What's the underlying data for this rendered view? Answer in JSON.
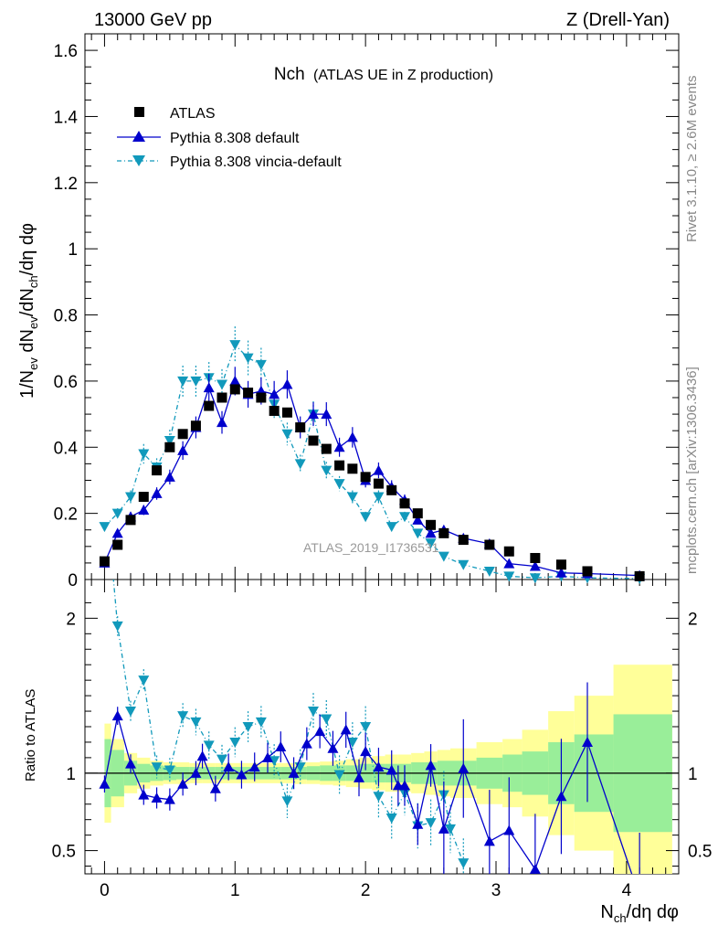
{
  "header": {
    "left": "13000 GeV pp",
    "right": "Z (Drell-Yan)"
  },
  "title_main": "Nch",
  "title_sub": "(ATLAS UE in Z production)",
  "side_text": {
    "rivet": "Rivet 3.1.10, ≥ 2.6M events",
    "mcplots": "mcplots.cern.ch [arXiv:1306.3436]"
  },
  "watermark": "ATLAS_2019_I1736531",
  "axes": {
    "xlabel": "N_ch/dη dφ",
    "ylabel_top": "1/N_ev dN_ev/dN_ch/dη dφ",
    "ylabel_bottom": "Ratio to ATLAS",
    "xlim": [
      -0.15,
      4.4
    ],
    "ylim_top": [
      0,
      1.65
    ],
    "ylim_bottom": [
      0.35,
      2.25
    ],
    "xticks": [
      "0",
      "1",
      "2",
      "3",
      "4"
    ],
    "yticks_top": [
      "0",
      "0.2",
      "0.4",
      "0.6",
      "0.8",
      "1",
      "1.2",
      "1.4",
      "1.6"
    ],
    "yticks_bottom": [
      "0.5",
      "1",
      "2"
    ]
  },
  "legend": [
    {
      "label": "ATLAS",
      "color": "#000000",
      "marker": "square"
    },
    {
      "label": "Pythia 8.308 default",
      "color": "#0000cc",
      "marker": "triangle-up"
    },
    {
      "label": "Pythia 8.308 vincia-default",
      "color": "#1199bb",
      "marker": "triangle-down"
    }
  ],
  "chart_data": {
    "type": "scatter",
    "x": [
      0.0,
      0.1,
      0.2,
      0.3,
      0.4,
      0.5,
      0.6,
      0.7,
      0.8,
      0.9,
      1.0,
      1.1,
      1.2,
      1.3,
      1.4,
      1.5,
      1.6,
      1.7,
      1.8,
      1.9,
      2.0,
      2.1,
      2.2,
      2.3,
      2.4,
      2.5,
      2.6,
      2.75,
      2.95,
      3.1,
      3.3,
      3.5,
      3.7,
      4.1
    ],
    "series": [
      {
        "name": "ATLAS",
        "values": [
          0.055,
          0.105,
          0.18,
          0.25,
          0.33,
          0.4,
          0.44,
          0.465,
          0.525,
          0.55,
          0.575,
          0.565,
          0.55,
          0.51,
          0.505,
          0.46,
          0.42,
          0.395,
          0.345,
          0.335,
          0.31,
          0.29,
          0.27,
          0.23,
          0.2,
          0.165,
          0.14,
          0.12,
          0.105,
          0.085,
          0.065,
          0.045,
          0.025,
          0.01
        ]
      },
      {
        "name": "Pythia 8.308 default",
        "values": [
          0.05,
          0.14,
          0.19,
          0.21,
          0.26,
          0.31,
          0.39,
          0.46,
          0.58,
          0.475,
          0.6,
          0.56,
          0.57,
          0.56,
          0.59,
          0.46,
          0.5,
          0.5,
          0.4,
          0.43,
          0.3,
          0.33,
          0.28,
          0.24,
          0.18,
          0.14,
          0.15,
          0.125,
          0.108,
          0.048,
          0.04,
          0.02,
          0.018,
          0.012
        ]
      },
      {
        "name": "Pythia 8.308 vincia-default",
        "values": [
          0.16,
          0.2,
          0.25,
          0.38,
          0.34,
          0.42,
          0.6,
          0.6,
          0.61,
          0.59,
          0.71,
          0.67,
          0.65,
          0.53,
          0.44,
          0.35,
          0.5,
          0.33,
          0.29,
          0.25,
          0.19,
          0.25,
          0.16,
          0.19,
          0.14,
          0.11,
          0.07,
          0.045,
          0.025,
          0.01,
          0.005,
          0.01,
          0.005,
          0.003
        ]
      }
    ],
    "ratio": {
      "default": [
        0.93,
        1.37,
        1.06,
        0.86,
        0.84,
        0.83,
        0.93,
        1.0,
        1.11,
        0.9,
        1.04,
        0.99,
        1.04,
        1.1,
        1.17,
        1.0,
        1.19,
        1.27,
        1.16,
        1.28,
        0.97,
        1.14,
        1.04,
        1.02,
        0.92,
        0.92,
        0.67,
        1.05,
        0.64,
        1.03,
        0.56,
        0.63,
        0.38,
        0.85,
        1.2,
        0.2
      ],
      "default_x": [
        0.0,
        0.1,
        0.2,
        0.3,
        0.4,
        0.5,
        0.6,
        0.7,
        0.75,
        0.85,
        0.95,
        1.05,
        1.15,
        1.25,
        1.35,
        1.45,
        1.55,
        1.65,
        1.75,
        1.85,
        1.95,
        2.0,
        2.1,
        2.2,
        2.25,
        2.3,
        2.4,
        2.5,
        2.6,
        2.75,
        2.95,
        3.1,
        3.3,
        3.5,
        3.7,
        4.1
      ],
      "vincia": [
        2.9,
        1.95,
        1.4,
        1.6,
        1.04,
        1.02,
        1.37,
        1.33,
        1.18,
        1.09,
        1.2,
        1.3,
        1.33,
        1.08,
        0.82,
        1.04,
        1.4,
        1.35,
        0.99,
        1.2,
        1.3,
        0.85,
        0.71,
        0.87,
        0.66,
        0.68,
        0.86,
        0.64,
        0.42
      ],
      "vincia_x": [
        0.0,
        0.1,
        0.2,
        0.3,
        0.4,
        0.5,
        0.6,
        0.7,
        0.8,
        0.9,
        1.0,
        1.1,
        1.2,
        1.3,
        1.4,
        1.5,
        1.6,
        1.7,
        1.8,
        1.9,
        2.0,
        2.1,
        2.2,
        2.3,
        2.4,
        2.5,
        2.6,
        2.65,
        2.75
      ]
    },
    "bands_x_edges": [
      0.0,
      0.05,
      0.15,
      0.25,
      0.35,
      0.45,
      0.55,
      0.65,
      0.75,
      0.85,
      0.95,
      1.05,
      1.15,
      1.25,
      1.35,
      1.45,
      1.55,
      1.65,
      1.75,
      1.85,
      1.95,
      2.05,
      2.15,
      2.25,
      2.35,
      2.45,
      2.55,
      2.65,
      2.85,
      3.05,
      3.2,
      3.4,
      3.6,
      3.9,
      4.35
    ],
    "band_green": [
      0.22,
      0.15,
      0.08,
      0.06,
      0.05,
      0.045,
      0.04,
      0.04,
      0.04,
      0.04,
      0.04,
      0.04,
      0.04,
      0.04,
      0.04,
      0.04,
      0.045,
      0.05,
      0.05,
      0.05,
      0.06,
      0.06,
      0.06,
      0.06,
      0.07,
      0.07,
      0.08,
      0.08,
      0.1,
      0.12,
      0.14,
      0.2,
      0.25,
      0.38
    ],
    "band_yellow": [
      0.32,
      0.22,
      0.13,
      0.1,
      0.08,
      0.07,
      0.07,
      0.065,
      0.065,
      0.065,
      0.065,
      0.065,
      0.065,
      0.065,
      0.065,
      0.07,
      0.07,
      0.075,
      0.08,
      0.09,
      0.1,
      0.11,
      0.12,
      0.12,
      0.13,
      0.14,
      0.15,
      0.16,
      0.2,
      0.22,
      0.28,
      0.4,
      0.5,
      0.7
    ],
    "colors": {
      "green": "#99ee99",
      "yellow": "#ffff99"
    }
  }
}
